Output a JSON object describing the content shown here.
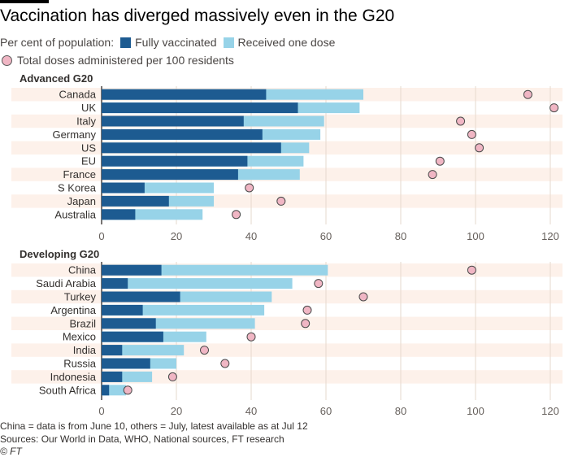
{
  "title": "Vaccination has diverged massively even in the G20",
  "legend": {
    "prefix": "Per cent of population:",
    "fully_label": "Fully vaccinated",
    "one_dose_label": "Received one dose",
    "doses_label": "Total doses administered per 100 residents"
  },
  "colors": {
    "fully": "#1d5b91",
    "one_dose": "#97d3e8",
    "doses": "#f0b6c4",
    "stripe": "#fdf1ea"
  },
  "footer": {
    "note": "China = data is from June 10, others = July, latest available as at Jul 12",
    "sources": "Sources: Our World in Data, WHO, National sources, FT research",
    "copyright": "© FT"
  },
  "chart_data": [
    {
      "type": "bar",
      "title": "Advanced G20",
      "categories": [
        "Canada",
        "UK",
        "Italy",
        "Germany",
        "US",
        "EU",
        "France",
        "S Korea",
        "Japan",
        "Australia"
      ],
      "series": [
        {
          "name": "Fully vaccinated",
          "values": [
            44,
            52.5,
            38,
            43,
            48,
            39,
            36.5,
            11.5,
            18,
            9
          ]
        },
        {
          "name": "Received one dose",
          "values": [
            70,
            69,
            59.5,
            58.5,
            55.5,
            54,
            53,
            30,
            30,
            27
          ]
        },
        {
          "name": "Total doses administered per 100 residents",
          "values": [
            114,
            121,
            96,
            99,
            101,
            90.5,
            88.5,
            39.5,
            48,
            36
          ]
        }
      ],
      "xlim": [
        0,
        120
      ],
      "xticks": [
        "0",
        "20",
        "40",
        "60",
        "80",
        "100",
        "120"
      ],
      "grid": true
    },
    {
      "type": "bar",
      "title": "Developing G20",
      "categories": [
        "China",
        "Saudi Arabia",
        "Turkey",
        "Argentina",
        "Brazil",
        "Mexico",
        "India",
        "Russia",
        "Indonesia",
        "South Africa"
      ],
      "series": [
        {
          "name": "Fully vaccinated",
          "values": [
            16,
            7,
            21,
            11,
            14.5,
            16.5,
            5.5,
            13,
            5.5,
            2
          ]
        },
        {
          "name": "Received one dose",
          "values": [
            60.5,
            51,
            45.5,
            43.5,
            41,
            28,
            22,
            20,
            13.5,
            6.5
          ]
        },
        {
          "name": "Total doses administered per 100 residents",
          "values": [
            99,
            58,
            70,
            55,
            54.5,
            40,
            27.5,
            33,
            19,
            7
          ]
        }
      ],
      "xlim": [
        0,
        120
      ],
      "xticks": [
        "0",
        "20",
        "40",
        "60",
        "80",
        "100",
        "120"
      ],
      "grid": true
    }
  ]
}
